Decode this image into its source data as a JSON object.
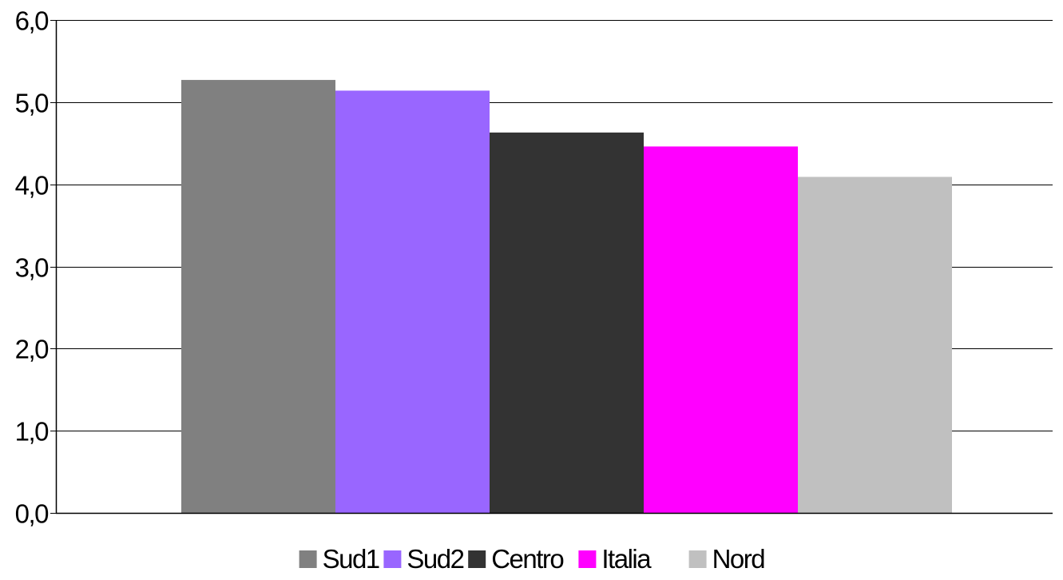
{
  "chart_data": {
    "type": "bar",
    "title": "",
    "xlabel": "",
    "ylabel": "",
    "ylim": [
      0,
      6
    ],
    "yticks": [
      0,
      1,
      2,
      3,
      4,
      5,
      6
    ],
    "ytick_labels": [
      "0,0",
      "1,0",
      "2,0",
      "3,0",
      "4,0",
      "5,0",
      "6,0"
    ],
    "grid": "horizontal",
    "legend_position": "bottom",
    "series": [
      {
        "name": "Sud1",
        "value": 5.27,
        "color": "#808080"
      },
      {
        "name": "Sud2",
        "value": 5.14,
        "color": "#9966ff"
      },
      {
        "name": "Centro",
        "value": 4.63,
        "color": "#333333"
      },
      {
        "name": "Italia",
        "value": 4.46,
        "color": "#ff00ff"
      },
      {
        "name": "Nord",
        "value": 4.09,
        "color": "#c0c0c0"
      }
    ]
  }
}
